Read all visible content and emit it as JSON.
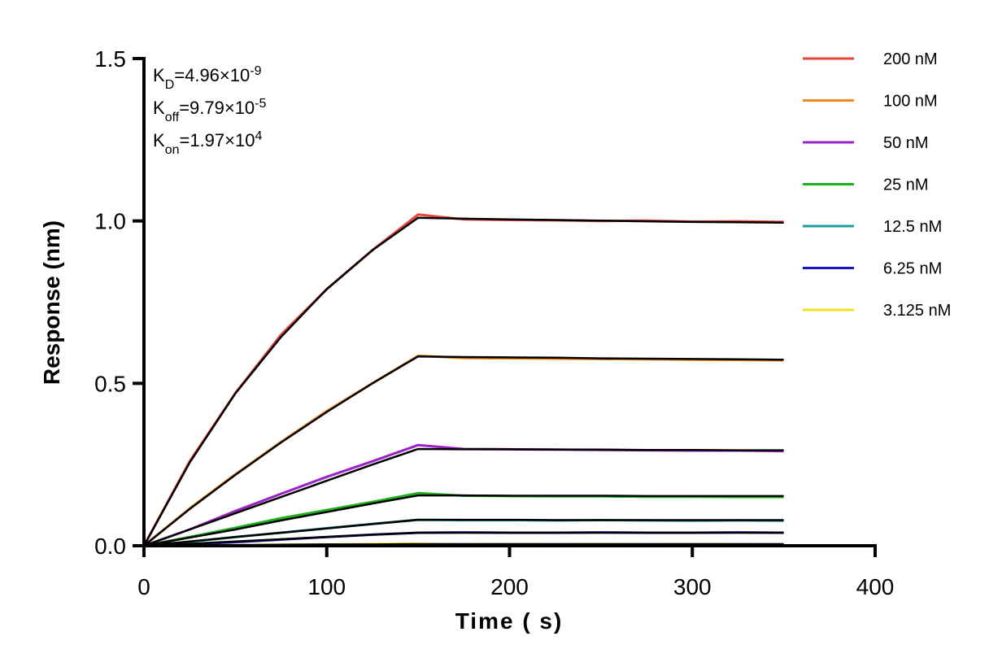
{
  "chart_data": {
    "type": "line",
    "x_label": "Time ( s)",
    "y_label": "Response (nm)",
    "annotations": [
      {
        "symbol": "K",
        "subscript": "D",
        "text": "=4.96×10",
        "superscript": "-9"
      },
      {
        "symbol": "K",
        "subscript": "off",
        "text": "=9.79×10",
        "superscript": "-5"
      },
      {
        "symbol": "K",
        "subscript": "on",
        "text": "=1.97×10",
        "superscript": "4"
      }
    ],
    "x": [
      0,
      25,
      50,
      75,
      100,
      125,
      150,
      175,
      200,
      225,
      250,
      275,
      300,
      325,
      350
    ],
    "series": [
      {
        "name": "200 nM",
        "color": "#e8463c",
        "values": [
          0,
          0.26,
          0.47,
          0.65,
          0.79,
          0.91,
          1.02,
          1.005,
          1.003,
          1.002,
          1.0,
          1.001,
          0.998,
          0.999,
          0.997
        ]
      },
      {
        "name": "100 nM",
        "color": "#f5891f",
        "values": [
          0,
          0.115,
          0.22,
          0.32,
          0.415,
          0.5,
          0.585,
          0.578,
          0.577,
          0.576,
          0.575,
          0.574,
          0.573,
          0.572,
          0.571
        ]
      },
      {
        "name": "50 nM",
        "color": "#9b22c8",
        "values": [
          0,
          0.05,
          0.107,
          0.16,
          0.212,
          0.26,
          0.31,
          0.298,
          0.297,
          0.296,
          0.295,
          0.294,
          0.293,
          0.293,
          0.291
        ]
      },
      {
        "name": "25 nM",
        "color": "#1fb21f",
        "values": [
          0,
          0.027,
          0.055,
          0.085,
          0.11,
          0.135,
          0.162,
          0.154,
          0.153,
          0.152,
          0.152,
          0.151,
          0.151,
          0.15,
          0.15
        ]
      },
      {
        "name": "12.5 nM",
        "color": "#1f9c9c",
        "values": [
          0,
          0.012,
          0.027,
          0.04,
          0.054,
          0.067,
          0.08,
          0.079,
          0.079,
          0.078,
          0.079,
          0.078,
          0.077,
          0.078,
          0.077
        ]
      },
      {
        "name": "6.25 nM",
        "color": "#1414c8",
        "values": [
          0,
          0.004,
          0.011,
          0.019,
          0.027,
          0.034,
          0.04,
          0.041,
          0.04,
          0.04,
          0.041,
          0.04,
          0.04,
          0.041,
          0.04
        ]
      },
      {
        "name": "3.125 nM",
        "color": "#f0e21c",
        "values": [
          0,
          0.001,
          0.002,
          0.003,
          0.004,
          0.005,
          0.006,
          0.004,
          0.005,
          0.004,
          0.005,
          0.004,
          0.005,
          0.004,
          0.004
        ]
      }
    ],
    "fits": [
      {
        "color": "#000000",
        "values": [
          0,
          0.256,
          0.469,
          0.643,
          0.79,
          0.91,
          1.01,
          1.007,
          1.005,
          1.003,
          1.001,
          0.999,
          0.997,
          0.996,
          0.995
        ]
      },
      {
        "color": "#000000",
        "values": [
          0,
          0.113,
          0.218,
          0.318,
          0.412,
          0.5,
          0.583,
          0.581,
          0.58,
          0.579,
          0.577,
          0.576,
          0.575,
          0.574,
          0.573
        ]
      },
      {
        "color": "#000000",
        "values": [
          0,
          0.05,
          0.1,
          0.15,
          0.2,
          0.25,
          0.298,
          0.297,
          0.297,
          0.296,
          0.296,
          0.295,
          0.295,
          0.294,
          0.294
        ]
      },
      {
        "color": "#000000",
        "values": [
          0,
          0.025,
          0.05,
          0.078,
          0.104,
          0.13,
          0.155,
          0.155,
          0.154,
          0.154,
          0.154,
          0.153,
          0.153,
          0.153,
          0.153
        ]
      },
      {
        "color": "#000000",
        "values": [
          0,
          0.013,
          0.027,
          0.04,
          0.053,
          0.067,
          0.08,
          0.08,
          0.08,
          0.079,
          0.079,
          0.079,
          0.079,
          0.079,
          0.079
        ]
      },
      {
        "color": "#000000",
        "values": [
          0,
          0.006,
          0.013,
          0.02,
          0.027,
          0.034,
          0.04,
          0.04,
          0.04,
          0.04,
          0.04,
          0.04,
          0.04,
          0.04,
          0.04
        ]
      },
      {
        "color": "#000000",
        "values": [
          0,
          0.001,
          0.002,
          0.003,
          0.004,
          0.004,
          0.005,
          0.005,
          0.005,
          0.005,
          0.005,
          0.005,
          0.005,
          0.005,
          0.005
        ]
      }
    ],
    "xlim": [
      0,
      400
    ],
    "ylim": [
      0,
      1.5
    ],
    "xticks": [
      0,
      100,
      200,
      300,
      400
    ],
    "yticks": [
      {
        "value": 0,
        "label": "0.0"
      },
      0.5,
      {
        "value": 1,
        "label": "1.0"
      },
      1.5
    ],
    "legend": "right",
    "grid": false
  }
}
